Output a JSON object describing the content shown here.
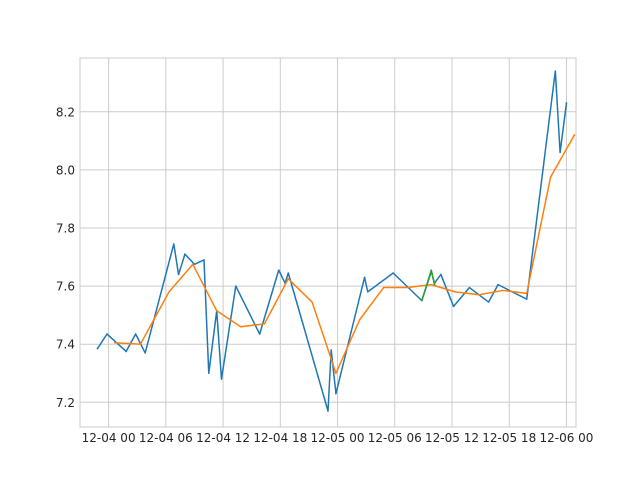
{
  "chart_data": {
    "type": "line",
    "title": "",
    "xlabel": "",
    "ylabel": "",
    "x_unit": "datetime",
    "xlim": [
      "2023-12-03T21:00",
      "2023-12-06T01:00"
    ],
    "ylim": [
      7.115,
      8.385
    ],
    "grid": true,
    "legend": "none",
    "x_ticks": [
      {
        "x": "2023-12-04T00:00",
        "label": "12-04 00"
      },
      {
        "x": "2023-12-04T06:00",
        "label": "12-04 06"
      },
      {
        "x": "2023-12-04T12:00",
        "label": "12-04 12"
      },
      {
        "x": "2023-12-04T18:00",
        "label": "12-04 18"
      },
      {
        "x": "2023-12-05T00:00",
        "label": "12-05 00"
      },
      {
        "x": "2023-12-05T06:00",
        "label": "12-05 06"
      },
      {
        "x": "2023-12-05T12:00",
        "label": "12-05 12"
      },
      {
        "x": "2023-12-05T18:00",
        "label": "12-05 18"
      },
      {
        "x": "2023-12-06T00:00",
        "label": "12-06 00"
      }
    ],
    "y_ticks": [
      {
        "y": 7.2,
        "label": "7.2"
      },
      {
        "y": 7.4,
        "label": "7.4"
      },
      {
        "y": 7.6,
        "label": "7.6"
      },
      {
        "y": 7.8,
        "label": "7.8"
      },
      {
        "y": 8.0,
        "label": "8.0"
      },
      {
        "y": 8.2,
        "label": "8.2"
      }
    ],
    "series": [
      {
        "color": "#1f77b4",
        "points": [
          {
            "x": "2023-12-03T22:50",
            "y": 7.385
          },
          {
            "x": "2023-12-03T23:50",
            "y": 7.435
          },
          {
            "x": "2023-12-04T01:50",
            "y": 7.375
          },
          {
            "x": "2023-12-04T02:50",
            "y": 7.435
          },
          {
            "x": "2023-12-04T03:50",
            "y": 7.37
          },
          {
            "x": "2023-12-04T06:50",
            "y": 7.745
          },
          {
            "x": "2023-12-04T07:20",
            "y": 7.64
          },
          {
            "x": "2023-12-04T08:00",
            "y": 7.71
          },
          {
            "x": "2023-12-04T09:00",
            "y": 7.675
          },
          {
            "x": "2023-12-04T10:00",
            "y": 7.69
          },
          {
            "x": "2023-12-04T10:30",
            "y": 7.3
          },
          {
            "x": "2023-12-04T11:20",
            "y": 7.515
          },
          {
            "x": "2023-12-04T11:50",
            "y": 7.28
          },
          {
            "x": "2023-12-04T13:20",
            "y": 7.6
          },
          {
            "x": "2023-12-04T15:50",
            "y": 7.435
          },
          {
            "x": "2023-12-04T17:50",
            "y": 7.655
          },
          {
            "x": "2023-12-04T18:30",
            "y": 7.61
          },
          {
            "x": "2023-12-04T18:50",
            "y": 7.645
          },
          {
            "x": "2023-12-04T23:00",
            "y": 7.17
          },
          {
            "x": "2023-12-04T23:20",
            "y": 7.38
          },
          {
            "x": "2023-12-04T23:50",
            "y": 7.23
          },
          {
            "x": "2023-12-05T02:50",
            "y": 7.63
          },
          {
            "x": "2023-12-05T03:10",
            "y": 7.58
          },
          {
            "x": "2023-12-05T05:50",
            "y": 7.645
          },
          {
            "x": "2023-12-05T08:50",
            "y": 7.55
          },
          {
            "x": "2023-12-05T09:50",
            "y": 7.65
          },
          {
            "x": "2023-12-05T10:10",
            "y": 7.61
          },
          {
            "x": "2023-12-05T10:50",
            "y": 7.64
          },
          {
            "x": "2023-12-05T12:10",
            "y": 7.53
          },
          {
            "x": "2023-12-05T13:50",
            "y": 7.595
          },
          {
            "x": "2023-12-05T15:50",
            "y": 7.545
          },
          {
            "x": "2023-12-05T16:50",
            "y": 7.605
          },
          {
            "x": "2023-12-05T19:50",
            "y": 7.555
          },
          {
            "x": "2023-12-05T22:50",
            "y": 8.34
          },
          {
            "x": "2023-12-05T23:20",
            "y": 8.06
          },
          {
            "x": "2023-12-06T00:00",
            "y": 8.23
          }
        ]
      },
      {
        "color": "#ff7f0e",
        "points": [
          {
            "x": "2023-12-04T00:40",
            "y": 7.405
          },
          {
            "x": "2023-12-04T03:20",
            "y": 7.4
          },
          {
            "x": "2023-12-04T06:20",
            "y": 7.58
          },
          {
            "x": "2023-12-04T08:50",
            "y": 7.675
          },
          {
            "x": "2023-12-04T11:20",
            "y": 7.515
          },
          {
            "x": "2023-12-04T13:50",
            "y": 7.46
          },
          {
            "x": "2023-12-04T16:20",
            "y": 7.47
          },
          {
            "x": "2023-12-04T18:50",
            "y": 7.625
          },
          {
            "x": "2023-12-04T21:20",
            "y": 7.545
          },
          {
            "x": "2023-12-04T23:50",
            "y": 7.3
          },
          {
            "x": "2023-12-05T02:20",
            "y": 7.485
          },
          {
            "x": "2023-12-05T04:50",
            "y": 7.595
          },
          {
            "x": "2023-12-05T07:20",
            "y": 7.595
          },
          {
            "x": "2023-12-05T09:50",
            "y": 7.605
          },
          {
            "x": "2023-12-05T12:20",
            "y": 7.58
          },
          {
            "x": "2023-12-05T14:50",
            "y": 7.57
          },
          {
            "x": "2023-12-05T17:20",
            "y": 7.585
          },
          {
            "x": "2023-12-05T19:50",
            "y": 7.575
          },
          {
            "x": "2023-12-05T22:20",
            "y": 7.975
          },
          {
            "x": "2023-12-06T00:50",
            "y": 8.12
          }
        ]
      },
      {
        "color": "#2ca02c",
        "points": [
          {
            "x": "2023-12-05T08:50",
            "y": 7.55
          },
          {
            "x": "2023-12-05T09:50",
            "y": 7.655
          },
          {
            "x": "2023-12-05T10:10",
            "y": 7.605
          }
        ]
      }
    ]
  }
}
